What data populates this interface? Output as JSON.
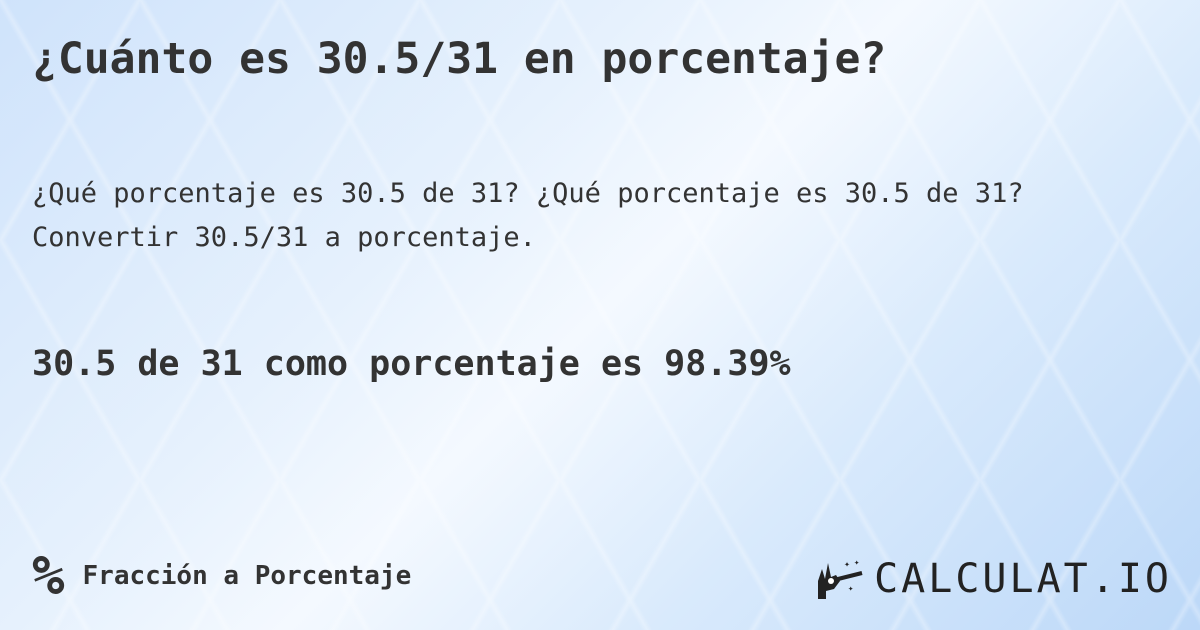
{
  "title": "¿Cuánto es 30.5/31 en porcentaje?",
  "description": "¿Qué porcentaje es 30.5 de 31? ¿Qué porcentaje es 30.5 de 31? Convertir 30.5/31 a porcentaje.",
  "answer": "30.5 de 31 como porcentaje es 98.39%",
  "category": {
    "icon": "percent-icon",
    "symbol": "%",
    "label": "Fracción a Porcentaje"
  },
  "logo": {
    "icon": "magic-hand-wand-icon",
    "text": "CALCULAT.IO"
  }
}
